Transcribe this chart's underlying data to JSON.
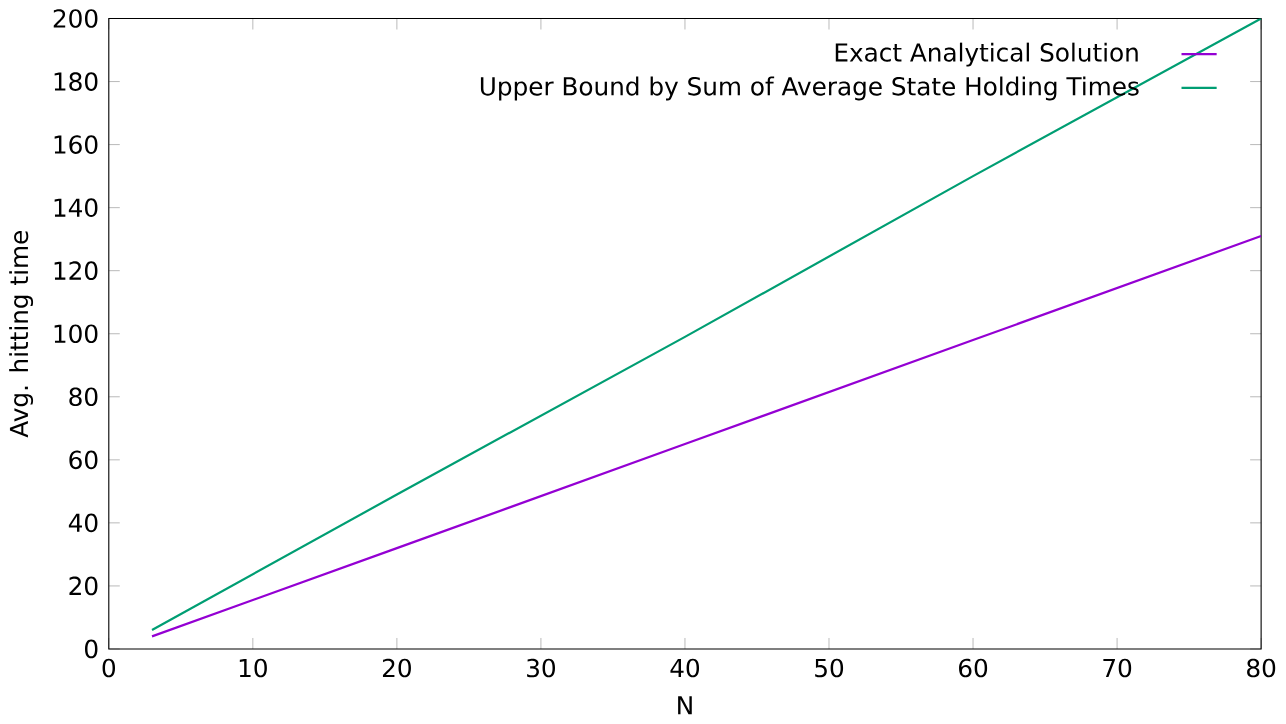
{
  "chart_data": {
    "type": "line",
    "xlabel": "N",
    "ylabel": "Avg. hitting time",
    "x": [
      3,
      20,
      40,
      60,
      80
    ],
    "series": [
      {
        "name": "Exact Analytical Solution",
        "color": "#9400d3",
        "values": [
          4,
          32,
          65,
          98,
          131
        ]
      },
      {
        "name": "Upper Bound by Sum of Average State Holding Times",
        "color": "#009e73",
        "values": [
          6,
          49,
          99,
          150,
          200
        ]
      }
    ],
    "xlim": [
      0,
      80
    ],
    "ylim": [
      0,
      200
    ],
    "xticks": [
      0,
      10,
      20,
      30,
      40,
      50,
      60,
      70,
      80
    ],
    "yticks": [
      0,
      20,
      40,
      60,
      80,
      100,
      120,
      140,
      160,
      180,
      200
    ],
    "grid": false,
    "legend": "top right",
    "marker": "none",
    "line_style": "solid"
  }
}
